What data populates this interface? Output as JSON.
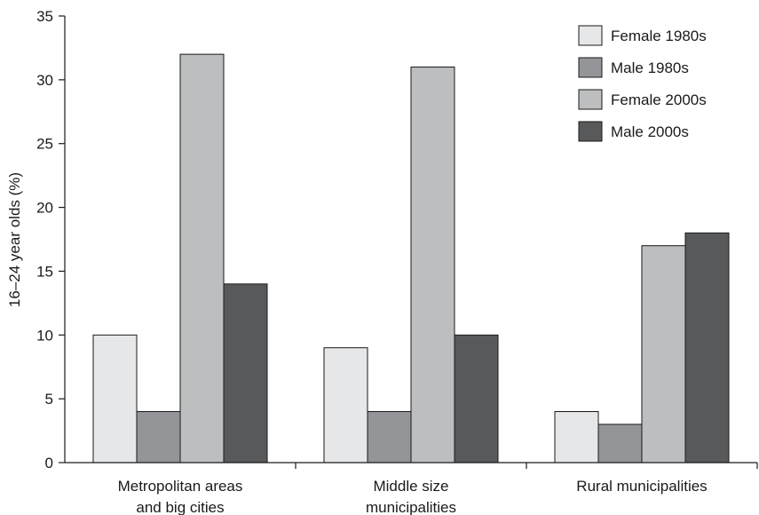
{
  "chart_data": {
    "type": "bar",
    "title": "",
    "xlabel": "",
    "ylabel": "16–24 year olds (%)",
    "ylim": [
      0,
      35
    ],
    "yticks": [
      0,
      5,
      10,
      15,
      20,
      25,
      30,
      35
    ],
    "grid": false,
    "legend_position": "top-right",
    "categories": [
      [
        "Metropolitan areas",
        "and big cities"
      ],
      [
        "Middle size",
        "municipalities"
      ],
      [
        "Rural municipalities"
      ]
    ],
    "series": [
      {
        "name": "Female 1980s",
        "color": "#e6e7e8",
        "values": [
          10,
          9,
          4
        ]
      },
      {
        "name": "Male 1980s",
        "color": "#939598",
        "values": [
          4,
          4,
          3
        ]
      },
      {
        "name": "Female 2000s",
        "color": "#bcbec0",
        "values": [
          32,
          31,
          17
        ]
      },
      {
        "name": "Male 2000s",
        "color": "#58595b",
        "values": [
          14,
          10,
          18
        ]
      }
    ]
  }
}
